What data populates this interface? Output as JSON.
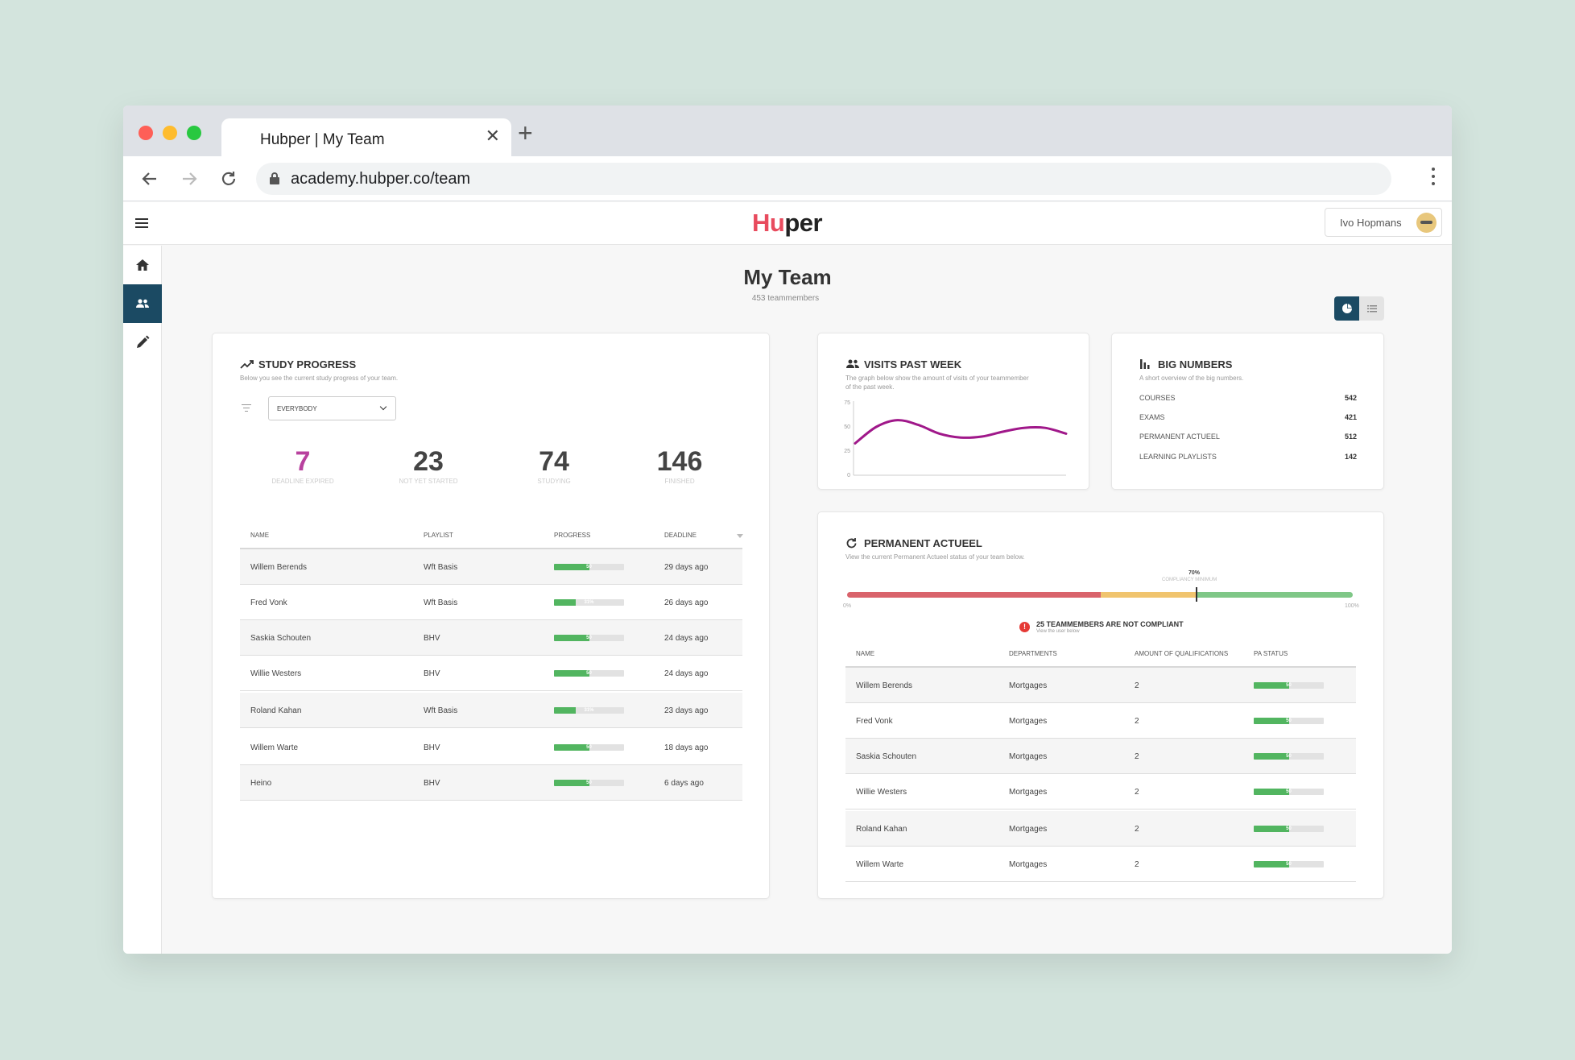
{
  "browser": {
    "tab_title": "Hubper | My Team",
    "url": "academy.hubper.co/team",
    "tab_close": "✕",
    "new_tab": "+"
  },
  "header": {
    "logo_part1": "Hu",
    "logo_part2": "per",
    "user_name": "Ivo Hopmans"
  },
  "sidebar": {
    "items": [
      {
        "icon": "home-icon"
      },
      {
        "icon": "team-icon",
        "active": true
      },
      {
        "icon": "pencil-icon"
      }
    ]
  },
  "page": {
    "title": "My Team",
    "subtitle": "453 teammembers"
  },
  "study_progress": {
    "title": "STUDY PROGRESS",
    "subtitle": "Below you see the current study progress of your team.",
    "filter_value": "EVERYBODY",
    "stats": [
      {
        "value": "7",
        "label": "DEADLINE EXPIRED"
      },
      {
        "value": "23",
        "label": "NOT YET STARTED"
      },
      {
        "value": "74",
        "label": "STUDYING"
      },
      {
        "value": "146",
        "label": "FINISHED"
      }
    ],
    "columns": [
      "NAME",
      "PLAYLIST",
      "PROGRESS",
      "DEADLINE"
    ],
    "rows": [
      {
        "name": "Willem Berends",
        "playlist": "Wft Basis",
        "progress": 50,
        "progress_label": "50",
        "deadline": "29 days ago"
      },
      {
        "name": "Fred Vonk",
        "playlist": "Wft Basis",
        "progress": 31,
        "progress_label": "31%",
        "deadline": "26 days ago"
      },
      {
        "name": "Saskia Schouten",
        "playlist": "BHV",
        "progress": 50,
        "progress_label": "50",
        "deadline": "24 days ago"
      },
      {
        "name": "Willie Westers",
        "playlist": "BHV",
        "progress": 50,
        "progress_label": "50",
        "deadline": "24 days ago"
      },
      {
        "name": "Roland Kahan",
        "playlist": "Wft Basis",
        "progress": 31,
        "progress_label": "31%",
        "deadline": "23 days ago"
      },
      {
        "name": "Willem Warte",
        "playlist": "BHV",
        "progress": 50,
        "progress_label": "50",
        "deadline": "18 days ago"
      },
      {
        "name": "Heino",
        "playlist": "BHV",
        "progress": 50,
        "progress_label": "50",
        "deadline": "6 days ago"
      }
    ]
  },
  "visits": {
    "title": "VISITS PAST WEEK",
    "subtitle_line1": "The graph below show the amount of visits of your teammember",
    "subtitle_line2": "of the past week."
  },
  "chart_data": {
    "type": "line",
    "title": "VISITS PAST WEEK",
    "y_ticks": [
      "75",
      "50",
      "25",
      "0"
    ],
    "ylim": [
      0,
      75
    ],
    "x": [
      0,
      1,
      2,
      3,
      4,
      5,
      6,
      7,
      8,
      9,
      10
    ],
    "series": [
      {
        "values": [
          33,
          50,
          57,
          52,
          43,
          39,
          40,
          45,
          49,
          49,
          43
        ]
      }
    ],
    "line_color": "#a0188a",
    "grid": false
  },
  "big_numbers": {
    "title": "BIG NUMBERS",
    "subtitle": "A short overview of the big numbers.",
    "items": [
      {
        "label": "COURSES",
        "value": "542"
      },
      {
        "label": "EXAMS",
        "value": "421"
      },
      {
        "label": "PERMANENT ACTUEEL",
        "value": "512"
      },
      {
        "label": "LEARNING PLAYLISTS",
        "value": "142"
      }
    ]
  },
  "permanent_actueel": {
    "title": "PERMANENT ACTUEEL",
    "subtitle": "View the current Permanent Actueel status of your team below.",
    "compliance_percent": "70%",
    "compliance_label": "COMPLIANCY MINIMUM",
    "compliance_value": 0.69,
    "scale_min": "0%",
    "scale_max": "100%",
    "warning_icon": "!",
    "warning_text": "25 TEAMMEMBERS ARE NOT COMPLIANT",
    "warning_sub": "View the user below",
    "segment_colors": {
      "red": "#d9636b",
      "yellow": "#f0c46e",
      "green": "#7fc787"
    },
    "columns": [
      "NAME",
      "DEPARTMENTS",
      "AMOUNT OF QUALIFICATIONS",
      "PA STATUS"
    ],
    "rows": [
      {
        "name": "Willem Berends",
        "department": "Mortgages",
        "qualifications": "2",
        "status": 50,
        "status_label": "50"
      },
      {
        "name": "Fred Vonk",
        "department": "Mortgages",
        "qualifications": "2",
        "status": 50,
        "status_label": "50"
      },
      {
        "name": "Saskia Schouten",
        "department": "Mortgages",
        "qualifications": "2",
        "status": 50,
        "status_label": "50"
      },
      {
        "name": "Willie Westers",
        "department": "Mortgages",
        "qualifications": "2",
        "status": 50,
        "status_label": "50"
      },
      {
        "name": "Roland Kahan",
        "department": "Mortgages",
        "qualifications": "2",
        "status": 50,
        "status_label": "50"
      },
      {
        "name": "Willem Warte",
        "department": "Mortgages",
        "qualifications": "2",
        "status": 50,
        "status_label": "50"
      }
    ]
  }
}
